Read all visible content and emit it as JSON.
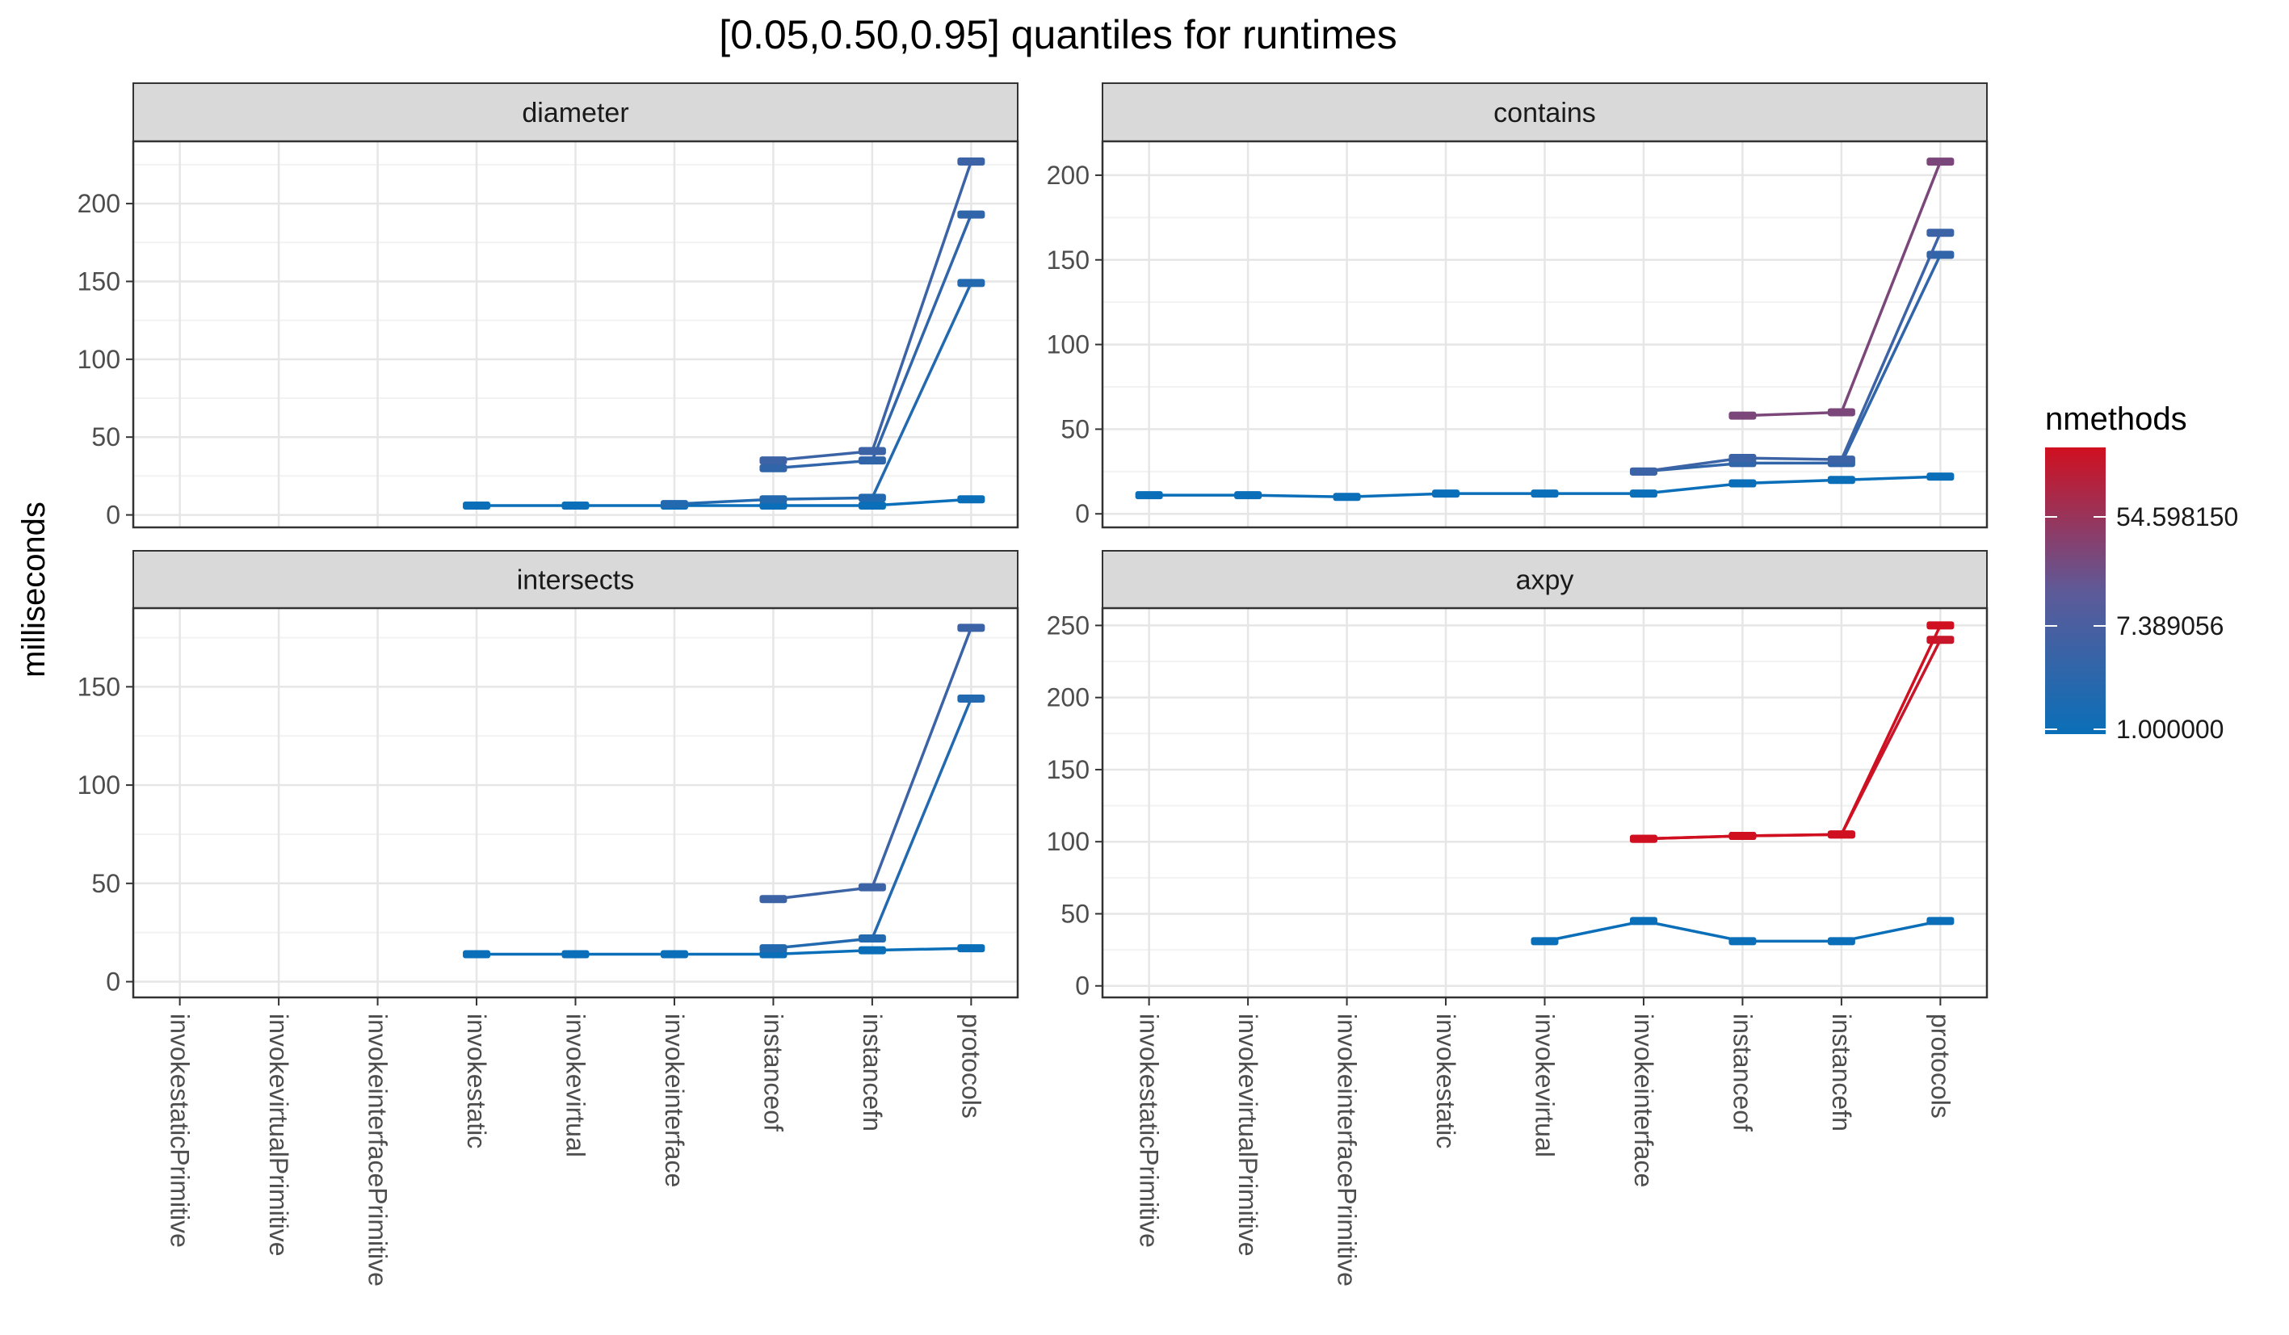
{
  "chart_data": {
    "type": "line",
    "title": "[0.05,0.50,0.95] quantiles for runtimes",
    "xlabel": "",
    "ylabel": "milliseconds",
    "categories": [
      "invokestaticPrimitive",
      "invokevirtualPrimitive",
      "invokeinterfacePrimitive",
      "invokestatic",
      "invokevirtual",
      "invokeinterface",
      "instanceof",
      "instancefn",
      "protocols"
    ],
    "grid": true,
    "legend": {
      "title": "nmethods",
      "placement": "right",
      "type": "gradient",
      "scale": "log",
      "labels": [
        "54.598150",
        "7.389056",
        "1.000000"
      ],
      "colors": {
        "low": "#0A6FB8",
        "high": "#D01020"
      }
    },
    "facets": [
      {
        "name": "diameter",
        "ylim": [
          -8,
          240
        ],
        "yticks": [
          0,
          50,
          100,
          150,
          200
        ],
        "series": [
          {
            "nmethods": 1,
            "values": [
              null,
              null,
              null,
              6,
              6,
              6,
              6,
              6,
              10
            ]
          },
          {
            "nmethods": 2,
            "values": [
              null,
              null,
              null,
              null,
              null,
              7,
              10,
              11,
              149
            ]
          },
          {
            "nmethods": 3,
            "values": [
              null,
              null,
              null,
              null,
              null,
              null,
              30,
              35,
              193
            ]
          },
          {
            "nmethods": 4,
            "values": [
              null,
              null,
              null,
              null,
              null,
              null,
              35,
              41,
              227
            ]
          }
        ]
      },
      {
        "name": "contains",
        "ylim": [
          -8,
          220
        ],
        "yticks": [
          0,
          50,
          100,
          150,
          200
        ],
        "series": [
          {
            "nmethods": 1,
            "values": [
              11,
              11,
              10,
              12,
              12,
              12,
              18,
              20,
              22
            ]
          },
          {
            "nmethods": 3,
            "values": [
              null,
              null,
              null,
              null,
              null,
              25,
              30,
              30,
              153
            ]
          },
          {
            "nmethods": 4,
            "values": [
              null,
              null,
              null,
              null,
              null,
              25,
              33,
              32,
              166
            ]
          },
          {
            "nmethods": 20,
            "values": [
              null,
              null,
              null,
              null,
              null,
              null,
              58,
              60,
              208
            ]
          }
        ]
      },
      {
        "name": "intersects",
        "ylim": [
          -8,
          190
        ],
        "yticks": [
          0,
          50,
          100,
          150
        ],
        "series": [
          {
            "nmethods": 1,
            "values": [
              null,
              null,
              null,
              14,
              14,
              14,
              14,
              16,
              17
            ]
          },
          {
            "nmethods": 2,
            "values": [
              null,
              null,
              null,
              null,
              null,
              null,
              17,
              22,
              144
            ]
          },
          {
            "nmethods": 4,
            "values": [
              null,
              null,
              null,
              null,
              null,
              null,
              42,
              48,
              180
            ]
          }
        ]
      },
      {
        "name": "axpy",
        "ylim": [
          -8,
          262
        ],
        "yticks": [
          0,
          50,
          100,
          150,
          200,
          250
        ],
        "series": [
          {
            "nmethods": 1,
            "values": [
              null,
              null,
              null,
              null,
              31,
              45,
              31,
              31,
              45
            ]
          },
          {
            "nmethods": 100,
            "values": [
              null,
              null,
              null,
              null,
              null,
              102,
              104,
              105,
              240
            ]
          },
          {
            "nmethods": 120,
            "values": [
              null,
              null,
              null,
              null,
              null,
              102,
              104,
              105,
              250
            ]
          }
        ]
      }
    ]
  }
}
